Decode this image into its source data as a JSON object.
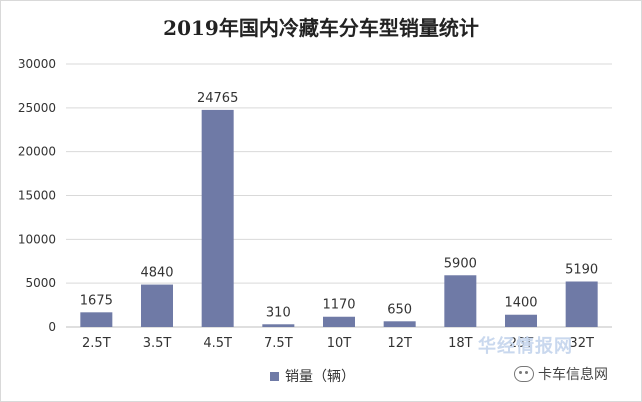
{
  "chart_data": {
    "type": "bar",
    "title": "2019年国内冷藏车分车型销量统计",
    "categories": [
      "2.5T",
      "3.5T",
      "4.5T",
      "7.5T",
      "10T",
      "12T",
      "18T",
      "25T",
      "32T"
    ],
    "series": [
      {
        "name": "销量（辆）",
        "values": [
          1675,
          4840,
          24765,
          310,
          1170,
          650,
          5900,
          1400,
          5190
        ],
        "color": "#6f7aa6"
      }
    ],
    "ylim": [
      0,
      30000
    ],
    "yticks": [
      0,
      5000,
      10000,
      15000,
      20000,
      25000,
      30000
    ],
    "grid": true,
    "legend": "bottom-center"
  },
  "watermarks": {
    "site": "华经情报网",
    "wechat": "卡车信息网"
  }
}
